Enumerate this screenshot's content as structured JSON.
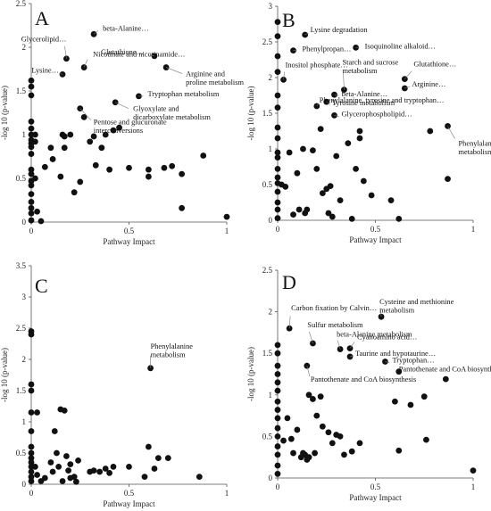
{
  "chart_data": [
    {
      "type": "scatter",
      "panel_label": "A",
      "xlabel": "Pathway Impact",
      "ylabel": "-log 10 (p-value)",
      "xlim": [
        0,
        1
      ],
      "ylim": [
        0,
        2.5
      ],
      "xticks": [
        "0",
        "0.5",
        "1"
      ],
      "yticks": [
        "0",
        "0.5",
        "1",
        "1.5",
        "2",
        "2.5"
      ],
      "points": [
        {
          "x": 0.0,
          "y": 1.62
        },
        {
          "x": 0.0,
          "y": 1.55
        },
        {
          "x": 0.0,
          "y": 1.45
        },
        {
          "x": 0.0,
          "y": 1.15
        },
        {
          "x": 0.0,
          "y": 1.07
        },
        {
          "x": 0.0,
          "y": 1.0
        },
        {
          "x": 0.0,
          "y": 0.94
        },
        {
          "x": 0.0,
          "y": 0.9
        },
        {
          "x": 0.0,
          "y": 0.86
        },
        {
          "x": 0.0,
          "y": 0.78
        },
        {
          "x": 0.0,
          "y": 0.6
        },
        {
          "x": 0.0,
          "y": 0.55
        },
        {
          "x": 0.0,
          "y": 0.47
        },
        {
          "x": 0.0,
          "y": 0.42
        },
        {
          "x": 0.0,
          "y": 0.32
        },
        {
          "x": 0.0,
          "y": 0.23
        },
        {
          "x": 0.0,
          "y": 0.16
        },
        {
          "x": 0.0,
          "y": 0.1
        },
        {
          "x": 0.0,
          "y": 0.02
        },
        {
          "x": 0.02,
          "y": 1.0
        },
        {
          "x": 0.02,
          "y": 0.92
        },
        {
          "x": 0.02,
          "y": 0.5
        },
        {
          "x": 0.03,
          "y": 0.12
        },
        {
          "x": 0.05,
          "y": 0.01
        },
        {
          "x": 0.07,
          "y": 0.63
        },
        {
          "x": 0.1,
          "y": 0.85
        },
        {
          "x": 0.11,
          "y": 0.72
        },
        {
          "x": 0.15,
          "y": 0.52
        },
        {
          "x": 0.16,
          "y": 1.0
        },
        {
          "x": 0.17,
          "y": 0.98
        },
        {
          "x": 0.17,
          "y": 0.85
        },
        {
          "x": 0.2,
          "y": 1.0
        },
        {
          "x": 0.22,
          "y": 0.34
        },
        {
          "x": 0.25,
          "y": 0.46
        },
        {
          "x": 0.27,
          "y": 1.2
        },
        {
          "x": 0.3,
          "y": 0.92
        },
        {
          "x": 0.32,
          "y": 0.98
        },
        {
          "x": 0.33,
          "y": 0.65
        },
        {
          "x": 0.36,
          "y": 0.85
        },
        {
          "x": 0.38,
          "y": 1.0
        },
        {
          "x": 0.4,
          "y": 0.6
        },
        {
          "x": 0.42,
          "y": 1.05
        },
        {
          "x": 0.45,
          "y": 1.08
        },
        {
          "x": 0.5,
          "y": 0.62
        },
        {
          "x": 0.6,
          "y": 0.6
        },
        {
          "x": 0.68,
          "y": 0.62
        },
        {
          "x": 0.72,
          "y": 0.64
        },
        {
          "x": 0.77,
          "y": 0.55
        },
        {
          "x": 0.77,
          "y": 0.16
        },
        {
          "x": 0.88,
          "y": 0.76
        },
        {
          "x": 1.0,
          "y": 0.06
        },
        {
          "x": 0.6,
          "y": 0.52
        }
      ],
      "annotations": [
        {
          "lines": [
            "Glycerolipid…"
          ],
          "x": 0.18,
          "y": 1.87
        },
        {
          "lines": [
            "beta-Alanine…"
          ],
          "x": 0.32,
          "y": 2.15
        },
        {
          "lines": [
            "Nicotinate and nicotinamide…"
          ],
          "x": 0.27,
          "y": 1.77
        },
        {
          "lines": [
            "Glutathione…"
          ],
          "x": 0.63,
          "y": 1.9
        },
        {
          "lines": [
            "Arginine and",
            "proline metabolism"
          ],
          "x": 0.69,
          "y": 1.77
        },
        {
          "lines": [
            "Lysine…"
          ],
          "x": 0.16,
          "y": 1.69
        },
        {
          "lines": [
            "Tryptophan metabolism"
          ],
          "x": 0.55,
          "y": 1.44
        },
        {
          "lines": [
            "Glyoxylate and",
            "dicarboxylate metabolism"
          ],
          "x": 0.43,
          "y": 1.37
        },
        {
          "lines": [
            "Pentose and glucuronate",
            "interconversions"
          ],
          "x": 0.25,
          "y": 1.3
        }
      ]
    },
    {
      "type": "scatter",
      "panel_label": "B",
      "xlabel": "Pathway Impact",
      "ylabel": "-log 10 (p-value)",
      "xlim": [
        0,
        1
      ],
      "ylim": [
        0,
        3
      ],
      "xticks": [
        "0",
        "0.5",
        "1"
      ],
      "yticks": [
        "0",
        "0.5",
        "1",
        "1.5",
        "2",
        "2.5",
        "3"
      ],
      "points": [
        {
          "x": 0.0,
          "y": 2.78
        },
        {
          "x": 0.0,
          "y": 2.58
        },
        {
          "x": 0.0,
          "y": 2.3
        },
        {
          "x": 0.0,
          "y": 2.08
        },
        {
          "x": 0.0,
          "y": 1.75
        },
        {
          "x": 0.0,
          "y": 1.58
        },
        {
          "x": 0.0,
          "y": 1.3
        },
        {
          "x": 0.0,
          "y": 1.15
        },
        {
          "x": 0.0,
          "y": 0.95
        },
        {
          "x": 0.0,
          "y": 0.88
        },
        {
          "x": 0.0,
          "y": 0.72
        },
        {
          "x": 0.0,
          "y": 0.6
        },
        {
          "x": 0.0,
          "y": 0.52
        },
        {
          "x": 0.0,
          "y": 0.4
        },
        {
          "x": 0.0,
          "y": 0.25
        },
        {
          "x": 0.0,
          "y": 0.15
        },
        {
          "x": 0.0,
          "y": 0.03
        },
        {
          "x": 0.02,
          "y": 0.5
        },
        {
          "x": 0.04,
          "y": 0.47
        },
        {
          "x": 0.06,
          "y": 0.95
        },
        {
          "x": 0.08,
          "y": 0.08
        },
        {
          "x": 0.1,
          "y": 0.66
        },
        {
          "x": 0.11,
          "y": 0.15
        },
        {
          "x": 0.13,
          "y": 1.0
        },
        {
          "x": 0.14,
          "y": 0.1
        },
        {
          "x": 0.15,
          "y": 0.15
        },
        {
          "x": 0.18,
          "y": 0.98
        },
        {
          "x": 0.2,
          "y": 0.72
        },
        {
          "x": 0.22,
          "y": 1.28
        },
        {
          "x": 0.23,
          "y": 0.38
        },
        {
          "x": 0.25,
          "y": 0.44
        },
        {
          "x": 0.26,
          "y": 0.1
        },
        {
          "x": 0.27,
          "y": 0.48
        },
        {
          "x": 0.28,
          "y": 0.05
        },
        {
          "x": 0.3,
          "y": 0.9
        },
        {
          "x": 0.32,
          "y": 0.28
        },
        {
          "x": 0.36,
          "y": 1.08
        },
        {
          "x": 0.38,
          "y": 0.02
        },
        {
          "x": 0.4,
          "y": 0.72
        },
        {
          "x": 0.42,
          "y": 1.25
        },
        {
          "x": 0.42,
          "y": 1.15
        },
        {
          "x": 0.44,
          "y": 0.55
        },
        {
          "x": 0.48,
          "y": 0.35
        },
        {
          "x": 0.58,
          "y": 0.28
        },
        {
          "x": 0.62,
          "y": 0.02
        },
        {
          "x": 0.78,
          "y": 1.25
        },
        {
          "x": 0.87,
          "y": 0.58
        }
      ],
      "annotations": [
        {
          "lines": [
            "Lysine degradation"
          ],
          "x": 0.14,
          "y": 2.6
        },
        {
          "lines": [
            "Phenylpropan…"
          ],
          "x": 0.08,
          "y": 2.38
        },
        {
          "lines": [
            "Isoquinoline alkaloid…"
          ],
          "x": 0.4,
          "y": 2.42
        },
        {
          "lines": [
            "Inositol phosphate…"
          ],
          "x": 0.03,
          "y": 1.97
        },
        {
          "lines": [
            "Glutathione…"
          ],
          "x": 0.65,
          "y": 1.98
        },
        {
          "lines": [
            "Arginine…"
          ],
          "x": 0.65,
          "y": 1.85
        },
        {
          "lines": [
            "Starch and sucrose",
            "metabolism"
          ],
          "x": 0.34,
          "y": 1.83
        },
        {
          "lines": [
            "beta-Alanine…"
          ],
          "x": 0.29,
          "y": 1.76
        },
        {
          "lines": [
            "Tyrosine metabolism"
          ],
          "x": 0.25,
          "y": 1.66
        },
        {
          "lines": [
            "Phenylalanine, tyrosine and tryptophan…"
          ],
          "x": 0.2,
          "y": 1.6
        },
        {
          "lines": [
            "Glycerophospholipid…"
          ],
          "x": 0.29,
          "y": 1.47
        },
        {
          "lines": [
            "Phenylalanine",
            "metabolism"
          ],
          "x": 0.87,
          "y": 1.32
        }
      ]
    },
    {
      "type": "scatter",
      "panel_label": "C",
      "xlabel": "Pathway Impact",
      "ylabel": "-log 10 (p-value)",
      "xlim": [
        0,
        1
      ],
      "ylim": [
        0,
        3.5
      ],
      "xticks": [
        "0",
        "0.5",
        "1"
      ],
      "yticks": [
        "0",
        "0.5",
        "1",
        "1.5",
        "2",
        "2.5",
        "3",
        "3.5"
      ],
      "points": [
        {
          "x": 0.0,
          "y": 2.45
        },
        {
          "x": 0.0,
          "y": 2.4
        },
        {
          "x": 0.0,
          "y": 1.6
        },
        {
          "x": 0.0,
          "y": 1.5
        },
        {
          "x": 0.0,
          "y": 1.15
        },
        {
          "x": 0.0,
          "y": 0.85
        },
        {
          "x": 0.0,
          "y": 0.6
        },
        {
          "x": 0.0,
          "y": 0.5
        },
        {
          "x": 0.0,
          "y": 0.42
        },
        {
          "x": 0.0,
          "y": 0.35
        },
        {
          "x": 0.0,
          "y": 0.28
        },
        {
          "x": 0.0,
          "y": 0.2
        },
        {
          "x": 0.0,
          "y": 0.12
        },
        {
          "x": 0.0,
          "y": 0.05
        },
        {
          "x": 0.02,
          "y": 0.28
        },
        {
          "x": 0.03,
          "y": 1.15
        },
        {
          "x": 0.03,
          "y": 0.15
        },
        {
          "x": 0.05,
          "y": 0.05
        },
        {
          "x": 0.07,
          "y": 0.1
        },
        {
          "x": 0.1,
          "y": 0.35
        },
        {
          "x": 0.11,
          "y": 0.2
        },
        {
          "x": 0.12,
          "y": 0.85
        },
        {
          "x": 0.13,
          "y": 0.5
        },
        {
          "x": 0.14,
          "y": 0.28
        },
        {
          "x": 0.15,
          "y": 1.2
        },
        {
          "x": 0.16,
          "y": 0.05
        },
        {
          "x": 0.17,
          "y": 1.18
        },
        {
          "x": 0.18,
          "y": 0.45
        },
        {
          "x": 0.19,
          "y": 0.22
        },
        {
          "x": 0.2,
          "y": 0.32
        },
        {
          "x": 0.2,
          "y": 0.1
        },
        {
          "x": 0.22,
          "y": 0.12
        },
        {
          "x": 0.23,
          "y": 0.04
        },
        {
          "x": 0.24,
          "y": 0.38
        },
        {
          "x": 0.3,
          "y": 0.2
        },
        {
          "x": 0.32,
          "y": 0.22
        },
        {
          "x": 0.35,
          "y": 0.2
        },
        {
          "x": 0.38,
          "y": 0.25
        },
        {
          "x": 0.4,
          "y": 0.18
        },
        {
          "x": 0.42,
          "y": 0.28
        },
        {
          "x": 0.5,
          "y": 0.28
        },
        {
          "x": 0.58,
          "y": 0.12
        },
        {
          "x": 0.6,
          "y": 0.6
        },
        {
          "x": 0.63,
          "y": 0.25
        },
        {
          "x": 0.65,
          "y": 0.42
        },
        {
          "x": 0.7,
          "y": 0.42
        },
        {
          "x": 0.86,
          "y": 0.12
        }
      ],
      "annotations": [
        {
          "lines": [
            "Phenylalanine",
            "metabolism"
          ],
          "x": 0.61,
          "y": 1.86
        }
      ]
    },
    {
      "type": "scatter",
      "panel_label": "D",
      "xlabel": "Pathway Impact",
      "ylabel": "-log 10 (p-value)",
      "xlim": [
        0,
        1
      ],
      "ylim": [
        0,
        2.5
      ],
      "xticks": [
        "0",
        "0.5",
        "1"
      ],
      "yticks": [
        "0",
        "0.5",
        "1",
        "1.5",
        "2",
        "2.5"
      ],
      "points": [
        {
          "x": 0.0,
          "y": 1.6
        },
        {
          "x": 0.0,
          "y": 1.5
        },
        {
          "x": 0.0,
          "y": 1.35
        },
        {
          "x": 0.0,
          "y": 1.25
        },
        {
          "x": 0.0,
          "y": 1.15
        },
        {
          "x": 0.0,
          "y": 1.05
        },
        {
          "x": 0.0,
          "y": 0.92
        },
        {
          "x": 0.0,
          "y": 0.82
        },
        {
          "x": 0.0,
          "y": 0.72
        },
        {
          "x": 0.0,
          "y": 0.6
        },
        {
          "x": 0.0,
          "y": 0.5
        },
        {
          "x": 0.0,
          "y": 0.38
        },
        {
          "x": 0.0,
          "y": 0.28
        },
        {
          "x": 0.0,
          "y": 0.15
        },
        {
          "x": 0.0,
          "y": 0.05
        },
        {
          "x": 0.03,
          "y": 0.45
        },
        {
          "x": 0.05,
          "y": 0.72
        },
        {
          "x": 0.07,
          "y": 0.47
        },
        {
          "x": 0.08,
          "y": 0.3
        },
        {
          "x": 0.1,
          "y": 0.58
        },
        {
          "x": 0.12,
          "y": 0.25
        },
        {
          "x": 0.13,
          "y": 0.3
        },
        {
          "x": 0.14,
          "y": 0.28
        },
        {
          "x": 0.15,
          "y": 0.22
        },
        {
          "x": 0.16,
          "y": 0.25
        },
        {
          "x": 0.16,
          "y": 1.0
        },
        {
          "x": 0.18,
          "y": 0.95
        },
        {
          "x": 0.19,
          "y": 0.3
        },
        {
          "x": 0.2,
          "y": 0.75
        },
        {
          "x": 0.22,
          "y": 0.98
        },
        {
          "x": 0.23,
          "y": 0.62
        },
        {
          "x": 0.26,
          "y": 0.55
        },
        {
          "x": 0.28,
          "y": 0.42
        },
        {
          "x": 0.3,
          "y": 0.52
        },
        {
          "x": 0.32,
          "y": 0.5
        },
        {
          "x": 0.34,
          "y": 0.28
        },
        {
          "x": 0.38,
          "y": 0.32
        },
        {
          "x": 0.42,
          "y": 0.42
        },
        {
          "x": 0.6,
          "y": 0.92
        },
        {
          "x": 0.62,
          "y": 0.33
        },
        {
          "x": 0.68,
          "y": 0.88
        },
        {
          "x": 0.75,
          "y": 0.98
        },
        {
          "x": 0.76,
          "y": 0.46
        },
        {
          "x": 1.0,
          "y": 0.09
        }
      ],
      "annotations": [
        {
          "lines": [
            "Carbon fixation by Calvin…"
          ],
          "x": 0.06,
          "y": 1.8
        },
        {
          "lines": [
            "Sulfur metabolism"
          ],
          "x": 0.18,
          "y": 1.62
        },
        {
          "lines": [
            "Cysteine and methionine",
            "metabolism"
          ],
          "x": 0.53,
          "y": 1.94
        },
        {
          "lines": [
            "beta-Alanine metabolism"
          ],
          "x": 0.32,
          "y": 1.55
        },
        {
          "lines": [
            "Cyanoamino acid…"
          ],
          "x": 0.37,
          "y": 1.56
        },
        {
          "lines": [
            "Taurine and hypotaurine…"
          ],
          "x": 0.37,
          "y": 1.46
        },
        {
          "lines": [
            "Tryptophan…"
          ],
          "x": 0.55,
          "y": 1.4
        },
        {
          "lines": [
            "Pantothenate and CoA biosynthesis"
          ],
          "x": 0.15,
          "y": 1.35
        },
        {
          "lines": [
            "Pantothenate and CoA biosynthes…"
          ],
          "x": 0.62,
          "y": 1.28
        },
        {
          "lines": [],
          "x": 0.86,
          "y": 1.19
        }
      ]
    }
  ]
}
